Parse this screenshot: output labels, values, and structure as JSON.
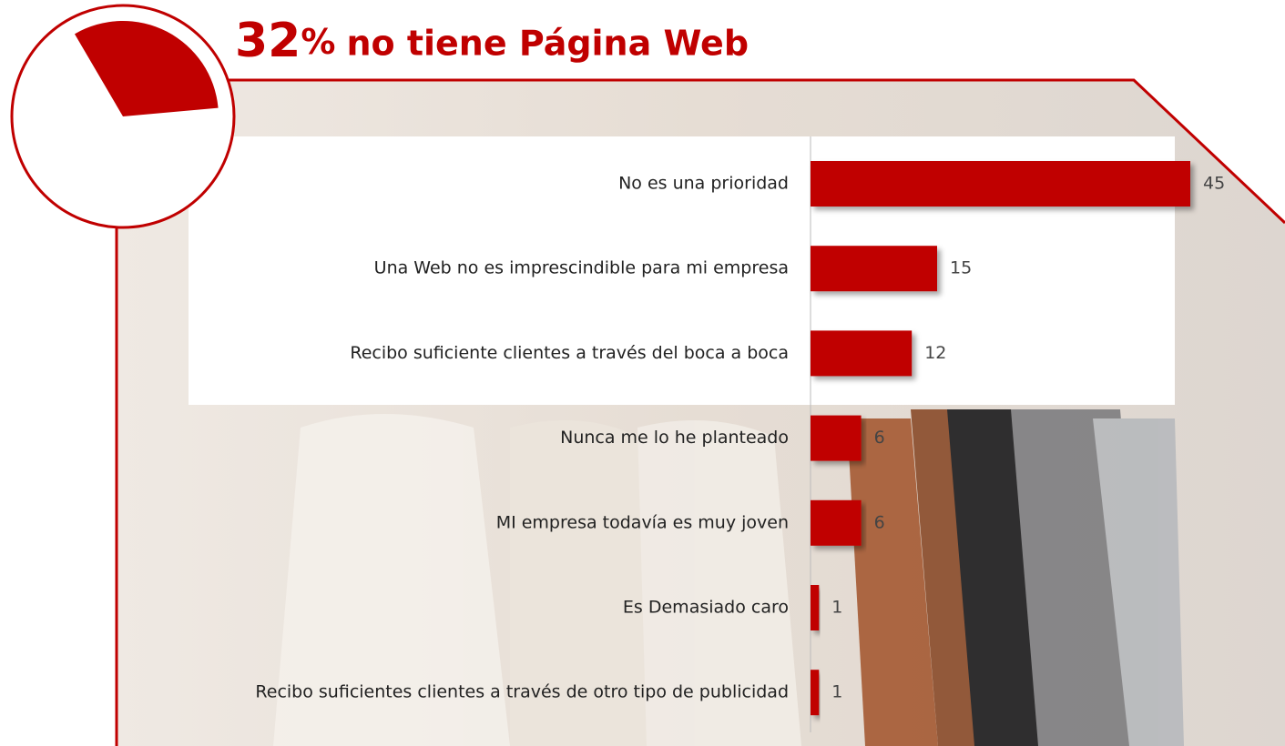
{
  "chart_data": [
    {
      "type": "pie",
      "values": [
        32
      ],
      "value_labels": [
        "32%"
      ],
      "label": "no tiene Página Web",
      "color": "#c00000"
    },
    {
      "type": "bar",
      "orientation": "horizontal",
      "color": "#c00000",
      "categories": [
        "No es una prioridad",
        "Una Web no es imprescindible para mi empresa",
        "Recibo suficiente clientes a través del boca a boca",
        "Nunca me lo he planteado",
        "MI empresa todavía es muy joven",
        "Es Demasiado caro",
        "Recibo suficientes clientes a través de otro tipo de publicidad"
      ],
      "values": [
        45,
        15,
        12,
        6,
        6,
        1,
        1
      ]
    }
  ]
}
